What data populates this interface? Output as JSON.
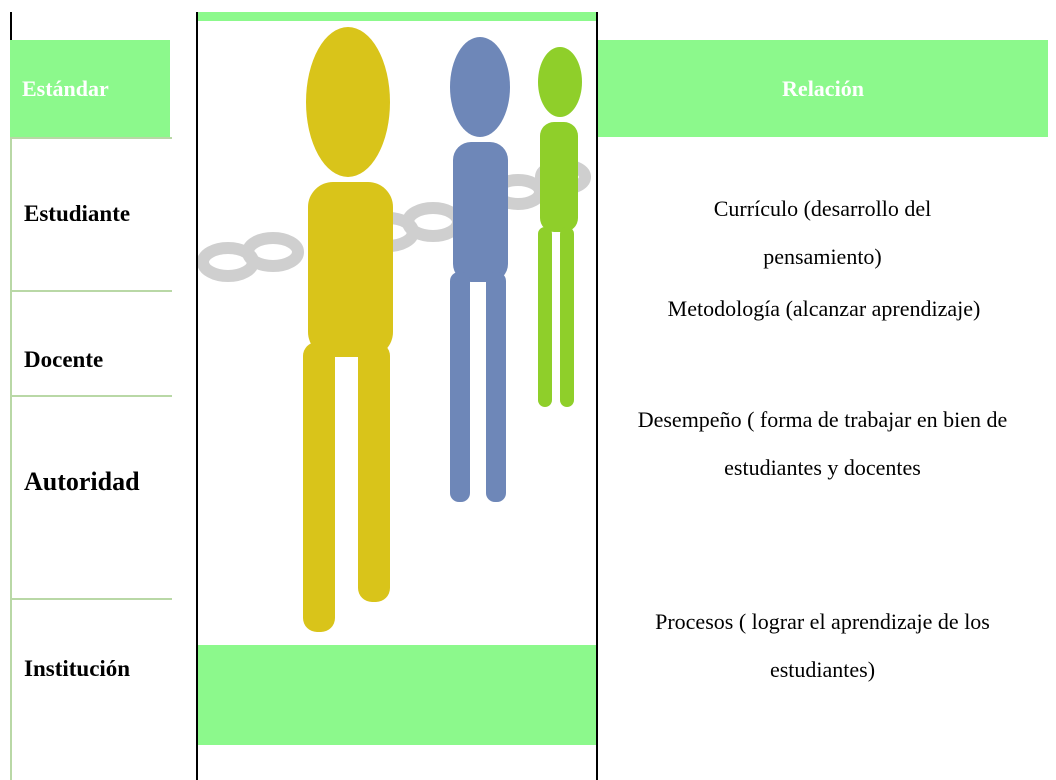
{
  "table": {
    "header": [
      "Estándar",
      "Relación"
    ],
    "rows": [
      [
        "Estudiante",
        "Currículo (desarrollo del pensamiento)"
      ],
      [
        "Docente",
        "Metodología (alcanzar aprendizaje)"
      ],
      [
        "Autoridad",
        "Desempeño ( forma de trabajar en bien de estudiantes y docentes"
      ],
      [
        "Institución",
        "Procesos ( lograr el aprendizaje de los estudiantes)"
      ]
    ]
  }
}
